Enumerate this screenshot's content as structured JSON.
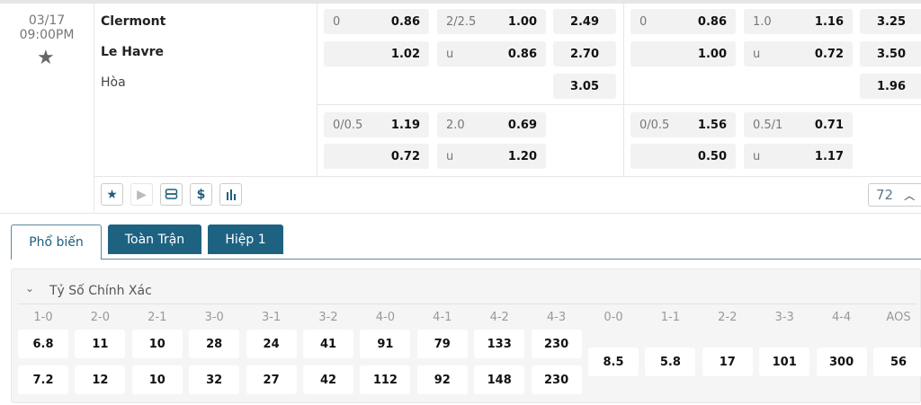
{
  "match": {
    "date": "03/17",
    "time": "09:00PM",
    "home": "Clermont",
    "away": "Le Havre",
    "draw": "Hòa",
    "favorite_icon": "star-icon"
  },
  "odds": {
    "full_time": {
      "main": {
        "handicap": [
          {
            "line": "0",
            "value": "0.86"
          },
          {
            "line": "",
            "value": "1.02"
          }
        ],
        "over_under": [
          {
            "line": "2/2.5",
            "value": "1.00"
          },
          {
            "line": "u",
            "value": "0.86"
          }
        ],
        "one_x_two": [
          "2.49",
          "2.70",
          "3.05"
        ]
      },
      "alt": {
        "handicap": [
          {
            "line": "0/0.5",
            "value": "1.19"
          },
          {
            "line": "",
            "value": "0.72"
          }
        ],
        "over_under": [
          {
            "line": "2.0",
            "value": "0.69"
          },
          {
            "line": "u",
            "value": "1.20"
          }
        ]
      }
    },
    "first_half": {
      "main": {
        "handicap": [
          {
            "line": "0",
            "value": "0.86"
          },
          {
            "line": "",
            "value": "1.00"
          }
        ],
        "over_under": [
          {
            "line": "1.0",
            "value": "1.16"
          },
          {
            "line": "u",
            "value": "0.72"
          }
        ],
        "one_x_two": [
          "3.25",
          "3.50",
          "1.96"
        ]
      },
      "alt": {
        "handicap": [
          {
            "line": "0/0.5",
            "value": "1.56"
          },
          {
            "line": "",
            "value": "0.50"
          }
        ],
        "over_under": [
          {
            "line": "0.5/1",
            "value": "0.71"
          },
          {
            "line": "u",
            "value": "1.17"
          }
        ]
      }
    }
  },
  "actions": {
    "icons": [
      "star-icon",
      "play-icon",
      "scroll-icon",
      "dollar-icon",
      "bar-chart-icon"
    ],
    "more_count": "72"
  },
  "tabs": [
    {
      "label": "Phổ biến",
      "active": true
    },
    {
      "label": "Toàn Trận",
      "active": false
    },
    {
      "label": "Hiệp 1",
      "active": false
    }
  ],
  "correct_score": {
    "title": "Tỷ Số Chính Xác",
    "columns": [
      {
        "score": "1-0",
        "home": "6.8",
        "away": "7.2"
      },
      {
        "score": "2-0",
        "home": "11",
        "away": "12"
      },
      {
        "score": "2-1",
        "home": "10",
        "away": "10"
      },
      {
        "score": "3-0",
        "home": "28",
        "away": "32"
      },
      {
        "score": "3-1",
        "home": "24",
        "away": "27"
      },
      {
        "score": "3-2",
        "home": "41",
        "away": "42"
      },
      {
        "score": "4-0",
        "home": "91",
        "away": "112"
      },
      {
        "score": "4-1",
        "home": "79",
        "away": "92"
      },
      {
        "score": "4-2",
        "home": "133",
        "away": "148"
      },
      {
        "score": "4-3",
        "home": "230",
        "away": "230"
      },
      {
        "score": "0-0",
        "single": "8.5"
      },
      {
        "score": "1-1",
        "single": "5.8"
      },
      {
        "score": "2-2",
        "single": "17"
      },
      {
        "score": "3-3",
        "single": "101"
      },
      {
        "score": "4-4",
        "single": "300"
      },
      {
        "score": "AOS",
        "single": "56"
      }
    ]
  },
  "colors": {
    "accent": "#1e6282",
    "cell_bg": "#f2f2f2"
  }
}
